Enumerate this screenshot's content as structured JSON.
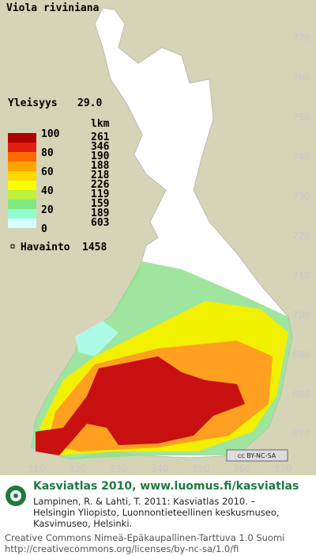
{
  "title": "Viola riviniana",
  "frequency": {
    "label": "Yleisyys",
    "value": "29.0"
  },
  "legend": {
    "scale": [
      100,
      80,
      60,
      40,
      20,
      0
    ],
    "count_header": "lkm",
    "counts": [
      261,
      346,
      190,
      188,
      218,
      226,
      119,
      159,
      189,
      603
    ],
    "colors": [
      "#b00000",
      "#e02010",
      "#ff6a00",
      "#ffa500",
      "#ffd800",
      "#ffff00",
      "#c0f040",
      "#80e880",
      "#90ffd0",
      "#d8ffff"
    ]
  },
  "observations": {
    "label": "Havainto",
    "count": 1458
  },
  "y_labels": [
    770,
    760,
    750,
    740,
    730,
    720,
    710,
    700,
    690,
    680,
    670
  ],
  "x_labels": [
    310,
    320,
    330,
    340,
    350,
    360,
    370
  ],
  "badge": "cc BY-NC-SA",
  "site": "Kasviatlas 2010, www.luomus.fi/kasviatlas",
  "citation": [
    "Lampinen, R. & Lahti, T. 2011: Kasviatlas 2010. –",
    "Helsingin Yliopisto, Luonnontieteellinen keskusmuseo,",
    "Kasvimuseo, Helsinki."
  ],
  "license": [
    "Creative Commons Nimeä-Epäkaupallinen-Tarttuva 1.0 Suomi",
    "http://creativecommons.org/licenses/by-nc-sa/1.0/fi"
  ]
}
